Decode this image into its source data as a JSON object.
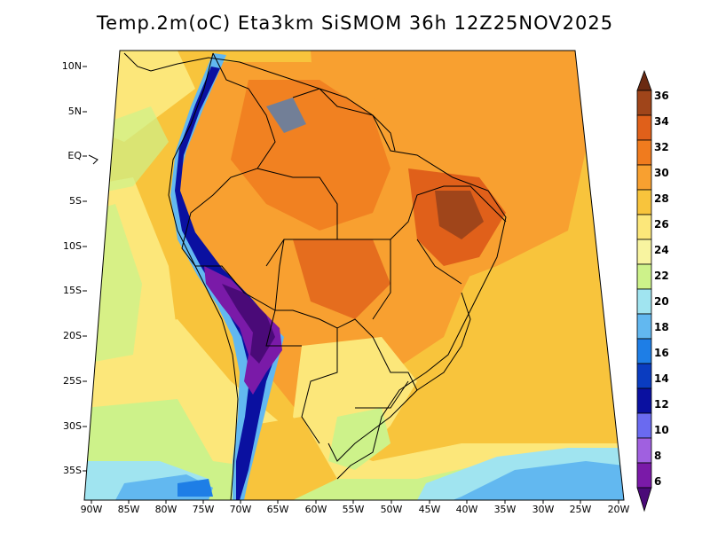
{
  "title": "Temp.2m(oC) Eta3km SiSMOM 36h 12Z25NOV2025",
  "lat_labels": [
    "10N",
    "5N",
    "EQ",
    "5S",
    "10S",
    "15S",
    "20S",
    "25S",
    "30S",
    "35S"
  ],
  "lon_labels": [
    "90W",
    "85W",
    "80W",
    "75W",
    "70W",
    "65W",
    "60W",
    "55W",
    "50W",
    "45W",
    "40W",
    "35W",
    "30W",
    "25W",
    "20W"
  ],
  "colorbar": {
    "labels": [
      "36",
      "34",
      "32",
      "30",
      "28",
      "26",
      "24",
      "22",
      "20",
      "18",
      "16",
      "14",
      "12",
      "10",
      "8",
      "6"
    ],
    "colors": [
      "#6b2a12",
      "#a0451a",
      "#e0601a",
      "#f07b1e",
      "#f8a030",
      "#f8c43c",
      "#fce77a",
      "#f8f4a0",
      "#cdf28a",
      "#a0e4f0",
      "#62b8f0",
      "#1e7ee6",
      "#0a3cc0",
      "#0a10a0",
      "#6a6af0",
      "#a060e0",
      "#7a1aa8",
      "#4a0a78"
    ]
  }
}
